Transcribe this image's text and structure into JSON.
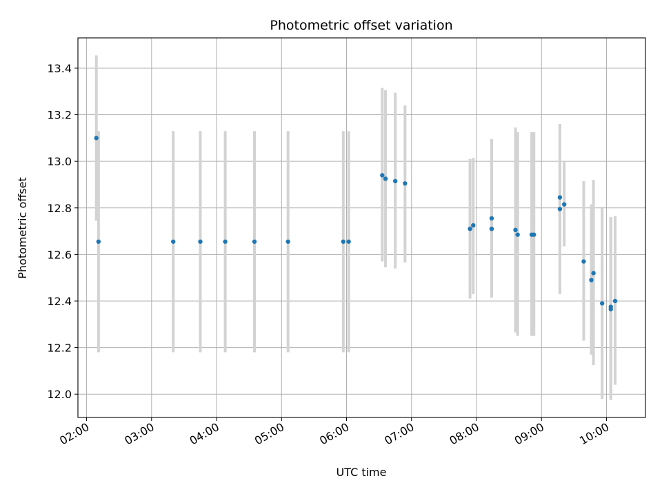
{
  "chart_data": {
    "type": "scatter",
    "title": "Photometric offset variation",
    "xlabel": "UTC time",
    "ylabel": "Photometric offset",
    "x_ticks": [
      "02:00",
      "03:00",
      "04:00",
      "05:00",
      "06:00",
      "07:00",
      "08:00",
      "09:00",
      "10:00"
    ],
    "y_ticks": [
      "12.0",
      "12.2",
      "12.4",
      "12.6",
      "12.8",
      "13.0",
      "13.2",
      "13.4"
    ],
    "xlim": [
      "01:52",
      "10:36"
    ],
    "ylim": [
      11.9,
      13.53
    ],
    "grid": true,
    "marker_color": "#1f77b4",
    "errorbar_color": "#d3d3d3",
    "points": [
      {
        "t": "02:09",
        "y": 13.1,
        "lo": 12.745,
        "hi": 13.455
      },
      {
        "t": "02:11",
        "y": 12.655,
        "lo": 12.18,
        "hi": 13.13
      },
      {
        "t": "03:20",
        "y": 12.655,
        "lo": 12.18,
        "hi": 13.13
      },
      {
        "t": "03:45",
        "y": 12.655,
        "lo": 12.18,
        "hi": 13.13
      },
      {
        "t": "04:08",
        "y": 12.655,
        "lo": 12.18,
        "hi": 13.13
      },
      {
        "t": "04:35",
        "y": 12.655,
        "lo": 12.18,
        "hi": 13.13
      },
      {
        "t": "05:06",
        "y": 12.655,
        "lo": 12.18,
        "hi": 13.13
      },
      {
        "t": "05:57",
        "y": 12.655,
        "lo": 12.18,
        "hi": 13.13
      },
      {
        "t": "06:02",
        "y": 12.655,
        "lo": 12.18,
        "hi": 13.13
      },
      {
        "t": "06:33",
        "y": 12.94,
        "lo": 12.57,
        "hi": 13.315
      },
      {
        "t": "06:36",
        "y": 12.925,
        "lo": 12.545,
        "hi": 13.305
      },
      {
        "t": "06:45",
        "y": 12.915,
        "lo": 12.54,
        "hi": 13.295
      },
      {
        "t": "06:54",
        "y": 12.905,
        "lo": 12.565,
        "hi": 13.24
      },
      {
        "t": "07:54",
        "y": 12.71,
        "lo": 12.41,
        "hi": 13.01
      },
      {
        "t": "07:57",
        "y": 12.725,
        "lo": 12.43,
        "hi": 13.015
      },
      {
        "t": "08:14",
        "y": 12.71,
        "lo": 12.415,
        "hi": 13.095
      },
      {
        "t": "08:14",
        "y": 12.755,
        "lo": 12.415,
        "hi": 13.095
      },
      {
        "t": "08:36",
        "y": 12.705,
        "lo": 12.265,
        "hi": 13.145
      },
      {
        "t": "08:38",
        "y": 12.685,
        "lo": 12.25,
        "hi": 13.125
      },
      {
        "t": "08:51",
        "y": 12.685,
        "lo": 12.25,
        "hi": 13.125
      },
      {
        "t": "08:53",
        "y": 12.685,
        "lo": 12.25,
        "hi": 13.125
      },
      {
        "t": "09:17",
        "y": 12.795,
        "lo": 12.43,
        "hi": 13.16
      },
      {
        "t": "09:17",
        "y": 12.845,
        "lo": 12.43,
        "hi": 13.16
      },
      {
        "t": "09:21",
        "y": 12.815,
        "lo": 12.635,
        "hi": 13.0
      },
      {
        "t": "09:39",
        "y": 12.57,
        "lo": 12.23,
        "hi": 12.915
      },
      {
        "t": "09:46",
        "y": 12.49,
        "lo": 12.17,
        "hi": 12.815
      },
      {
        "t": "09:48",
        "y": 12.52,
        "lo": 12.125,
        "hi": 12.92
      },
      {
        "t": "09:56",
        "y": 12.39,
        "lo": 11.98,
        "hi": 12.805
      },
      {
        "t": "10:04",
        "y": 12.375,
        "lo": 11.975,
        "hi": 12.76
      },
      {
        "t": "10:04",
        "y": 12.365,
        "lo": 11.975,
        "hi": 12.76
      },
      {
        "t": "10:08",
        "y": 12.4,
        "lo": 12.04,
        "hi": 12.765
      }
    ]
  }
}
